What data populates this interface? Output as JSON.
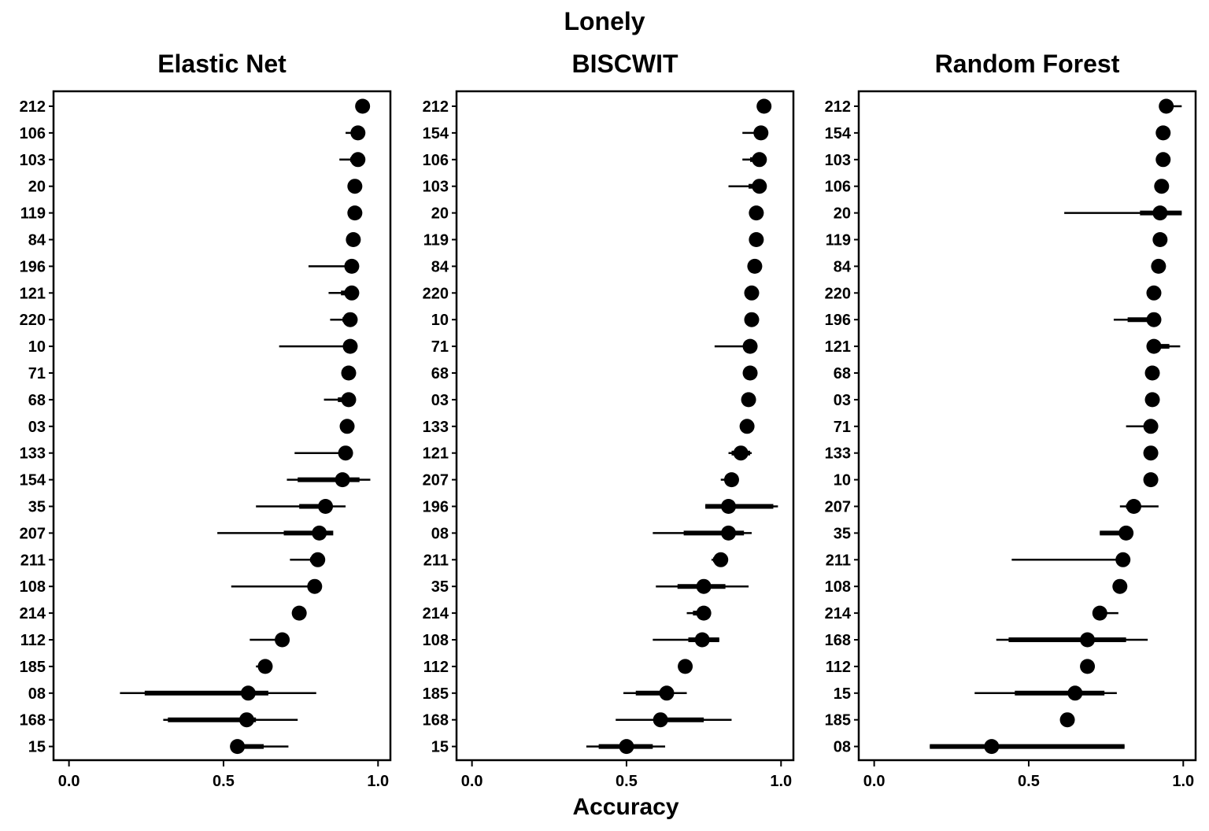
{
  "title": "Lonely",
  "xlabel": "Accuracy",
  "chart_data": [
    {
      "type": "point-interval",
      "title": "Elastic Net",
      "xlabel": "Accuracy",
      "xlim": [
        -0.05,
        1.04
      ],
      "xticks": [
        "0.0",
        "0.5",
        "1.0"
      ],
      "xtick_values": [
        0,
        0.5,
        1.0
      ],
      "rows": [
        {
          "label": "212",
          "point": 0.95,
          "thin": [
            0.95,
            0.95
          ],
          "thick": [
            0.95,
            0.95
          ]
        },
        {
          "label": "106",
          "point": 0.935,
          "thin": [
            0.895,
            0.945
          ],
          "thick": [
            0.925,
            0.94
          ]
        },
        {
          "label": "103",
          "point": 0.935,
          "thin": [
            0.875,
            0.945
          ],
          "thick": [
            0.91,
            0.94
          ]
        },
        {
          "label": "20",
          "point": 0.925,
          "thin": [
            0.925,
            0.925
          ],
          "thick": [
            0.925,
            0.925
          ]
        },
        {
          "label": "119",
          "point": 0.925,
          "thin": [
            0.925,
            0.925
          ],
          "thick": [
            0.925,
            0.925
          ]
        },
        {
          "label": "84",
          "point": 0.92,
          "thin": [
            0.92,
            0.92
          ],
          "thick": [
            0.92,
            0.92
          ]
        },
        {
          "label": "196",
          "point": 0.915,
          "thin": [
            0.775,
            0.92
          ],
          "thick": [
            0.9,
            0.92
          ]
        },
        {
          "label": "121",
          "point": 0.915,
          "thin": [
            0.84,
            0.92
          ],
          "thick": [
            0.88,
            0.92
          ]
        },
        {
          "label": "220",
          "point": 0.91,
          "thin": [
            0.845,
            0.915
          ],
          "thick": [
            0.885,
            0.915
          ]
        },
        {
          "label": "10",
          "point": 0.91,
          "thin": [
            0.68,
            0.915
          ],
          "thick": [
            0.9,
            0.915
          ]
        },
        {
          "label": "71",
          "point": 0.905,
          "thin": [
            0.905,
            0.905
          ],
          "thick": [
            0.905,
            0.905
          ]
        },
        {
          "label": "68",
          "point": 0.905,
          "thin": [
            0.825,
            0.91
          ],
          "thick": [
            0.87,
            0.91
          ]
        },
        {
          "label": "03",
          "point": 0.9,
          "thin": [
            0.9,
            0.9
          ],
          "thick": [
            0.9,
            0.9
          ]
        },
        {
          "label": "133",
          "point": 0.895,
          "thin": [
            0.73,
            0.9
          ],
          "thick": [
            0.88,
            0.9
          ]
        },
        {
          "label": "154",
          "point": 0.885,
          "thin": [
            0.705,
            0.975
          ],
          "thick": [
            0.74,
            0.94
          ]
        },
        {
          "label": "35",
          "point": 0.83,
          "thin": [
            0.605,
            0.895
          ],
          "thick": [
            0.745,
            0.845
          ]
        },
        {
          "label": "207",
          "point": 0.81,
          "thin": [
            0.48,
            0.84
          ],
          "thick": [
            0.695,
            0.855
          ]
        },
        {
          "label": "211",
          "point": 0.805,
          "thin": [
            0.715,
            0.81
          ],
          "thick": [
            0.78,
            0.81
          ]
        },
        {
          "label": "108",
          "point": 0.795,
          "thin": [
            0.525,
            0.8
          ],
          "thick": [
            0.79,
            0.8
          ]
        },
        {
          "label": "214",
          "point": 0.745,
          "thin": [
            0.745,
            0.745
          ],
          "thick": [
            0.745,
            0.745
          ]
        },
        {
          "label": "112",
          "point": 0.69,
          "thin": [
            0.585,
            0.695
          ],
          "thick": [
            0.68,
            0.695
          ]
        },
        {
          "label": "185",
          "point": 0.635,
          "thin": [
            0.605,
            0.64
          ],
          "thick": [
            0.62,
            0.64
          ]
        },
        {
          "label": "08",
          "point": 0.58,
          "thin": [
            0.165,
            0.8
          ],
          "thick": [
            0.245,
            0.645
          ]
        },
        {
          "label": "168",
          "point": 0.575,
          "thin": [
            0.305,
            0.74
          ],
          "thick": [
            0.32,
            0.605
          ]
        },
        {
          "label": "15",
          "point": 0.545,
          "thin": [
            0.545,
            0.71
          ],
          "thick": [
            0.545,
            0.63
          ]
        }
      ]
    },
    {
      "type": "point-interval",
      "title": "BISCWIT",
      "xlabel": "Accuracy",
      "xlim": [
        -0.05,
        1.04
      ],
      "xticks": [
        "0.0",
        "0.5",
        "1.0"
      ],
      "xtick_values": [
        0,
        0.5,
        1.0
      ],
      "rows": [
        {
          "label": "212",
          "point": 0.945,
          "thin": [
            0.945,
            0.945
          ],
          "thick": [
            0.945,
            0.945
          ]
        },
        {
          "label": "154",
          "point": 0.935,
          "thin": [
            0.875,
            0.945
          ],
          "thick": [
            0.915,
            0.94
          ]
        },
        {
          "label": "106",
          "point": 0.93,
          "thin": [
            0.875,
            0.935
          ],
          "thick": [
            0.9,
            0.935
          ]
        },
        {
          "label": "103",
          "point": 0.93,
          "thin": [
            0.83,
            0.935
          ],
          "thick": [
            0.895,
            0.935
          ]
        },
        {
          "label": "20",
          "point": 0.92,
          "thin": [
            0.92,
            0.92
          ],
          "thick": [
            0.92,
            0.92
          ]
        },
        {
          "label": "119",
          "point": 0.92,
          "thin": [
            0.92,
            0.92
          ],
          "thick": [
            0.92,
            0.92
          ]
        },
        {
          "label": "84",
          "point": 0.915,
          "thin": [
            0.915,
            0.915
          ],
          "thick": [
            0.915,
            0.915
          ]
        },
        {
          "label": "220",
          "point": 0.905,
          "thin": [
            0.905,
            0.905
          ],
          "thick": [
            0.905,
            0.905
          ]
        },
        {
          "label": "10",
          "point": 0.905,
          "thin": [
            0.905,
            0.905
          ],
          "thick": [
            0.905,
            0.905
          ]
        },
        {
          "label": "71",
          "point": 0.9,
          "thin": [
            0.785,
            0.905
          ],
          "thick": [
            0.895,
            0.905
          ]
        },
        {
          "label": "68",
          "point": 0.9,
          "thin": [
            0.9,
            0.9
          ],
          "thick": [
            0.9,
            0.9
          ]
        },
        {
          "label": "03",
          "point": 0.895,
          "thin": [
            0.895,
            0.895
          ],
          "thick": [
            0.895,
            0.895
          ]
        },
        {
          "label": "133",
          "point": 0.89,
          "thin": [
            0.89,
            0.89
          ],
          "thick": [
            0.89,
            0.89
          ]
        },
        {
          "label": "121",
          "point": 0.87,
          "thin": [
            0.83,
            0.905
          ],
          "thick": [
            0.84,
            0.9
          ]
        },
        {
          "label": "207",
          "point": 0.84,
          "thin": [
            0.805,
            0.845
          ],
          "thick": [
            0.82,
            0.845
          ]
        },
        {
          "label": "196",
          "point": 0.83,
          "thin": [
            0.755,
            0.99
          ],
          "thick": [
            0.755,
            0.975
          ]
        },
        {
          "label": "08",
          "point": 0.83,
          "thin": [
            0.585,
            0.905
          ],
          "thick": [
            0.685,
            0.88
          ]
        },
        {
          "label": "211",
          "point": 0.805,
          "thin": [
            0.775,
            0.81
          ],
          "thick": [
            0.78,
            0.81
          ]
        },
        {
          "label": "35",
          "point": 0.75,
          "thin": [
            0.595,
            0.895
          ],
          "thick": [
            0.665,
            0.82
          ]
        },
        {
          "label": "214",
          "point": 0.75,
          "thin": [
            0.695,
            0.755
          ],
          "thick": [
            0.715,
            0.755
          ]
        },
        {
          "label": "108",
          "point": 0.745,
          "thin": [
            0.585,
            0.8
          ],
          "thick": [
            0.7,
            0.8
          ]
        },
        {
          "label": "112",
          "point": 0.69,
          "thin": [
            0.69,
            0.69
          ],
          "thick": [
            0.69,
            0.69
          ]
        },
        {
          "label": "185",
          "point": 0.63,
          "thin": [
            0.49,
            0.695
          ],
          "thick": [
            0.53,
            0.635
          ]
        },
        {
          "label": "168",
          "point": 0.61,
          "thin": [
            0.465,
            0.84
          ],
          "thick": [
            0.61,
            0.75
          ]
        },
        {
          "label": "15",
          "point": 0.5,
          "thin": [
            0.37,
            0.625
          ],
          "thick": [
            0.41,
            0.585
          ]
        }
      ]
    },
    {
      "type": "point-interval",
      "title": "Random Forest",
      "xlabel": "Accuracy",
      "xlim": [
        -0.05,
        1.04
      ],
      "xticks": [
        "0.0",
        "0.5",
        "1.0"
      ],
      "xtick_values": [
        0,
        0.5,
        1.0
      ],
      "rows": [
        {
          "label": "212",
          "point": 0.945,
          "thin": [
            0.945,
            0.995
          ],
          "thick": [
            0.945,
            0.96
          ]
        },
        {
          "label": "154",
          "point": 0.935,
          "thin": [
            0.935,
            0.935
          ],
          "thick": [
            0.935,
            0.935
          ]
        },
        {
          "label": "103",
          "point": 0.935,
          "thin": [
            0.935,
            0.935
          ],
          "thick": [
            0.935,
            0.935
          ]
        },
        {
          "label": "106",
          "point": 0.93,
          "thin": [
            0.93,
            0.93
          ],
          "thick": [
            0.93,
            0.93
          ]
        },
        {
          "label": "20",
          "point": 0.925,
          "thin": [
            0.615,
            0.995
          ],
          "thick": [
            0.86,
            0.995
          ]
        },
        {
          "label": "119",
          "point": 0.925,
          "thin": [
            0.925,
            0.925
          ],
          "thick": [
            0.925,
            0.925
          ]
        },
        {
          "label": "84",
          "point": 0.92,
          "thin": [
            0.92,
            0.92
          ],
          "thick": [
            0.92,
            0.92
          ]
        },
        {
          "label": "220",
          "point": 0.905,
          "thin": [
            0.905,
            0.905
          ],
          "thick": [
            0.905,
            0.905
          ]
        },
        {
          "label": "196",
          "point": 0.905,
          "thin": [
            0.775,
            0.91
          ],
          "thick": [
            0.82,
            0.91
          ]
        },
        {
          "label": "121",
          "point": 0.905,
          "thin": [
            0.905,
            0.99
          ],
          "thick": [
            0.905,
            0.955
          ]
        },
        {
          "label": "68",
          "point": 0.9,
          "thin": [
            0.9,
            0.9
          ],
          "thick": [
            0.9,
            0.9
          ]
        },
        {
          "label": "03",
          "point": 0.9,
          "thin": [
            0.9,
            0.9
          ],
          "thick": [
            0.9,
            0.9
          ]
        },
        {
          "label": "71",
          "point": 0.895,
          "thin": [
            0.815,
            0.9
          ],
          "thick": [
            0.875,
            0.9
          ]
        },
        {
          "label": "133",
          "point": 0.895,
          "thin": [
            0.895,
            0.895
          ],
          "thick": [
            0.895,
            0.895
          ]
        },
        {
          "label": "10",
          "point": 0.895,
          "thin": [
            0.895,
            0.895
          ],
          "thick": [
            0.895,
            0.895
          ]
        },
        {
          "label": "207",
          "point": 0.84,
          "thin": [
            0.795,
            0.92
          ],
          "thick": [
            0.815,
            0.86
          ]
        },
        {
          "label": "35",
          "point": 0.815,
          "thin": [
            0.73,
            0.82
          ],
          "thick": [
            0.73,
            0.82
          ]
        },
        {
          "label": "211",
          "point": 0.805,
          "thin": [
            0.445,
            0.81
          ],
          "thick": [
            0.79,
            0.81
          ]
        },
        {
          "label": "108",
          "point": 0.795,
          "thin": [
            0.795,
            0.795
          ],
          "thick": [
            0.795,
            0.795
          ]
        },
        {
          "label": "214",
          "point": 0.73,
          "thin": [
            0.73,
            0.79
          ],
          "thick": [
            0.73,
            0.745
          ]
        },
        {
          "label": "168",
          "point": 0.69,
          "thin": [
            0.395,
            0.885
          ],
          "thick": [
            0.435,
            0.815
          ]
        },
        {
          "label": "112",
          "point": 0.69,
          "thin": [
            0.69,
            0.69
          ],
          "thick": [
            0.69,
            0.69
          ]
        },
        {
          "label": "15",
          "point": 0.65,
          "thin": [
            0.325,
            0.785
          ],
          "thick": [
            0.455,
            0.745
          ]
        },
        {
          "label": "185",
          "point": 0.625,
          "thin": [
            0.625,
            0.625
          ],
          "thick": [
            0.625,
            0.625
          ]
        },
        {
          "label": "08",
          "point": 0.38,
          "thin": [
            0.18,
            0.81
          ],
          "thick": [
            0.18,
            0.81
          ]
        }
      ]
    }
  ]
}
